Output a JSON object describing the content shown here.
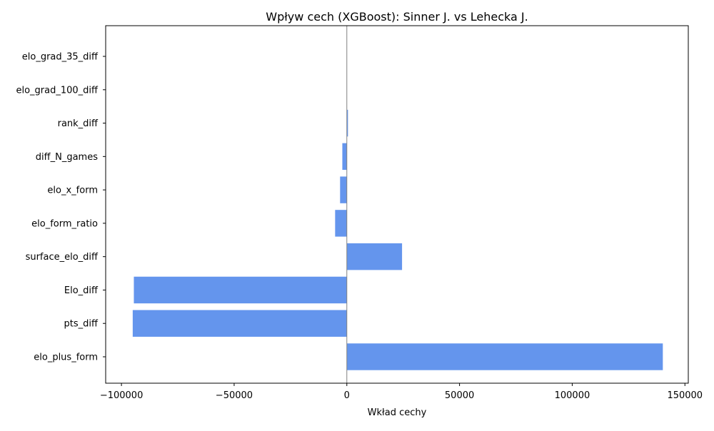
{
  "chart_data": {
    "type": "bar",
    "orientation": "horizontal",
    "title": "Wpływ cech (XGBoost): Sinner J. vs Lehecka J.",
    "xlabel": "Wkład cechy",
    "ylabel": "",
    "categories": [
      "elo_plus_form",
      "pts_diff",
      "Elo_diff",
      "surface_elo_diff",
      "elo_form_ratio",
      "elo_x_form",
      "diff_N_games",
      "rank_diff",
      "elo_grad_100_diff",
      "elo_grad_35_diff"
    ],
    "values": [
      140200,
      -95000,
      -94500,
      24500,
      -5200,
      -3000,
      -2000,
      500,
      0,
      0
    ],
    "xlim": [
      -107000,
      151500
    ],
    "xticks": [
      -100000,
      -50000,
      0,
      50000,
      100000,
      150000
    ],
    "xtick_labels": [
      "−100000",
      "−50000",
      "0",
      "50000",
      "100000",
      "150000"
    ],
    "zero_line": true,
    "grid": false,
    "colors": {
      "bar": "#6495ed",
      "zero_line": "#808080",
      "axis": "#000000"
    }
  }
}
